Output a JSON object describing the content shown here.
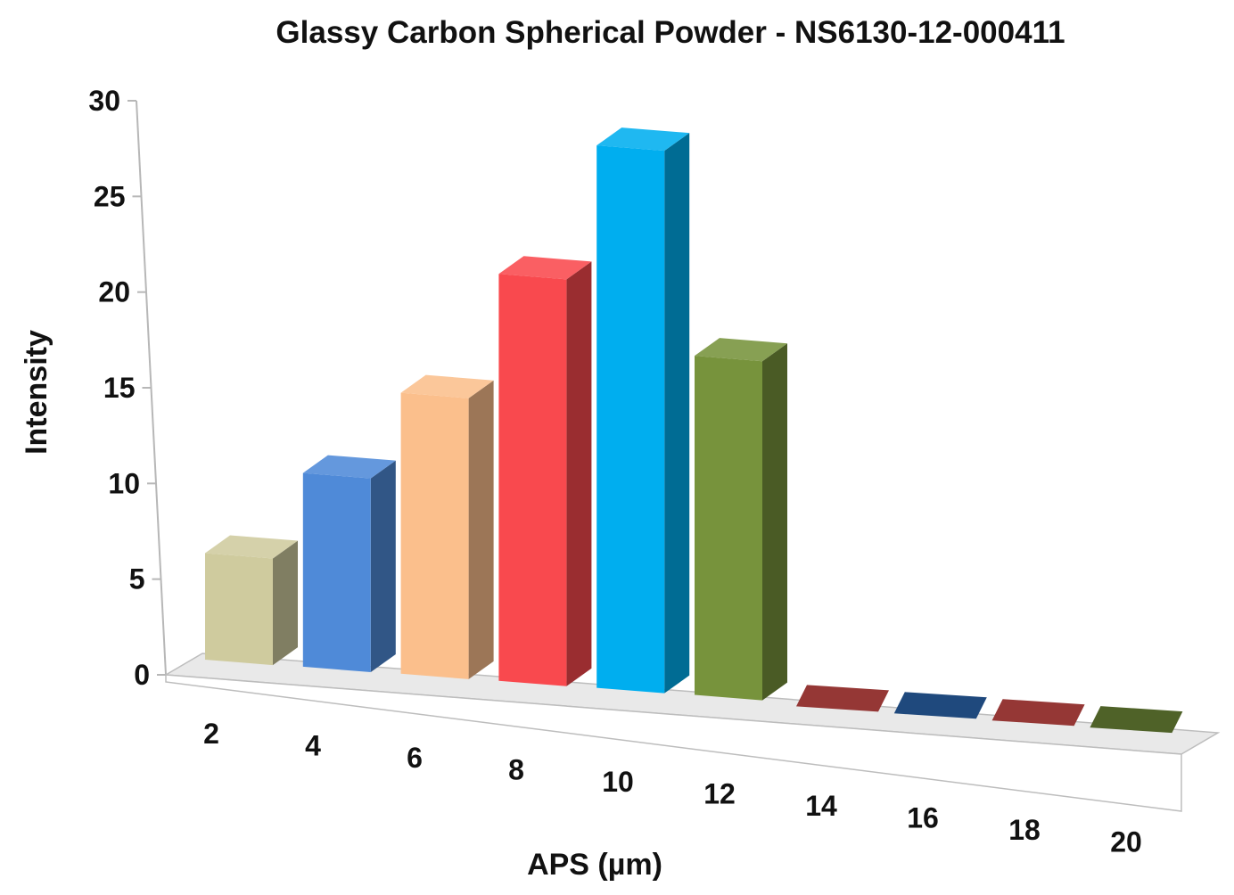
{
  "chart_data": {
    "type": "bar",
    "title": "Glassy Carbon Spherical Powder - NS6130-12-000411",
    "xlabel": "APS (µm)",
    "ylabel": "Intensity",
    "ylim": [
      0,
      30
    ],
    "yticks": [
      "0",
      "5",
      "10",
      "15",
      "20",
      "25",
      "30"
    ],
    "categories": [
      "2",
      "4",
      "6",
      "8",
      "10",
      "12",
      "14",
      "16",
      "18",
      "20"
    ],
    "values": [
      5.5,
      10,
      14.5,
      21,
      28,
      17.5,
      0,
      0,
      0,
      0
    ],
    "colors": [
      "#CFCB9E",
      "#4F8AD8",
      "#FBBF8C",
      "#F9494E",
      "#00AEEF",
      "#77933C",
      "#953735",
      "#1F497D",
      "#953735",
      "#4F6228"
    ],
    "grid": false,
    "legend": "none",
    "style": "3d-column"
  }
}
